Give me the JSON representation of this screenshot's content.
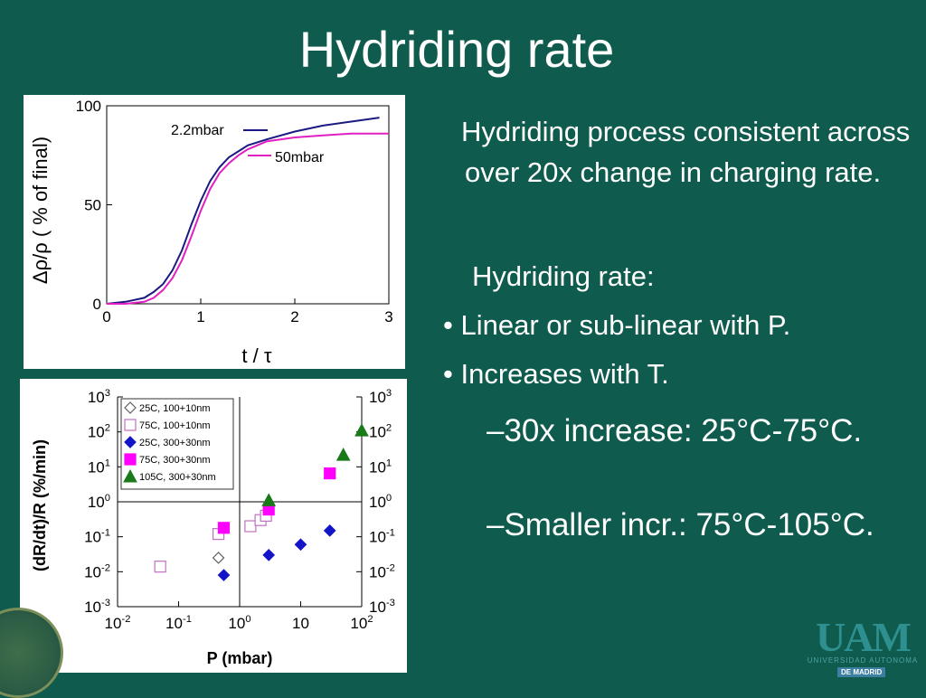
{
  "slide": {
    "title": "Hydriding rate",
    "intro": "Hydriding process consistent across over 20x change in charging rate.",
    "heading": "Hydriding rate:",
    "bullets": [
      "Linear or sub-linear with P.",
      "Increases with T."
    ],
    "sub_bullets": [
      "–30x increase: 25°C-75°C.",
      "–Smaller incr.: 75°C-105°C."
    ],
    "bullet_symbol": "•"
  },
  "logo": {
    "letters": "UAM",
    "line1": "UNIVERSIDAD AUTONOMA",
    "line2": "DE MADRID"
  },
  "colors": {
    "background": "#0f5b4e",
    "series_2_2mbar": "#1a1a80",
    "series_50mbar": "#e020c0",
    "magenta": "#ff00ff",
    "blue": "#1414c8",
    "green": "#1a7a1a",
    "open_violet": "#c070c0"
  },
  "chart_data": [
    {
      "type": "line",
      "xlabel": "t / τ",
      "ylabel": "Δρ/ρ ( % of final)",
      "xlim": [
        0,
        3
      ],
      "ylim": [
        0,
        100
      ],
      "xticks": [
        "0",
        "1",
        "2",
        "3"
      ],
      "yticks": [
        "0",
        "50",
        "100"
      ],
      "series": [
        {
          "name": "2.2mbar",
          "color": "#1a1a80",
          "x": [
            0,
            0.2,
            0.4,
            0.5,
            0.6,
            0.7,
            0.8,
            0.9,
            1.0,
            1.1,
            1.2,
            1.3,
            1.4,
            1.5,
            1.7,
            2.0,
            2.3,
            2.6,
            2.9
          ],
          "y": [
            0,
            1,
            3,
            6,
            10,
            17,
            27,
            40,
            52,
            62,
            69,
            74,
            77,
            80,
            83,
            87,
            90,
            92,
            94
          ]
        },
        {
          "name": "50mbar",
          "color": "#e020c0",
          "x": [
            0,
            0.2,
            0.4,
            0.5,
            0.6,
            0.7,
            0.8,
            0.9,
            1.0,
            1.1,
            1.2,
            1.3,
            1.4,
            1.5,
            1.7,
            2.0,
            2.3,
            2.6,
            3.0
          ],
          "y": [
            0,
            0,
            1,
            3,
            7,
            13,
            22,
            34,
            47,
            58,
            66,
            71,
            75,
            78,
            82,
            84,
            85,
            86,
            86
          ]
        }
      ]
    },
    {
      "type": "scatter",
      "xlabel": "P (mbar)",
      "ylabel": "(dR/dt)/R (%/min)",
      "xscale": "log",
      "yscale": "log",
      "xlim": [
        0.01,
        100
      ],
      "ylim": [
        0.001,
        1000
      ],
      "xticks": [
        "10-2",
        "10-1",
        "100",
        "10",
        "102"
      ],
      "yticks": [
        "10-3",
        "10-2",
        "10-1",
        "100",
        "101",
        "102",
        "103"
      ],
      "legend_position": "top-left",
      "series": [
        {
          "name": "25C,  100+10nm",
          "marker": "open-diamond",
          "color": "#606060",
          "x": [
            0.45
          ],
          "y": [
            0.025
          ]
        },
        {
          "name": "75C,  100+10nm",
          "marker": "open-square",
          "color": "#c070c0",
          "x": [
            0.05,
            0.45,
            1.5,
            2.2,
            2.7
          ],
          "y": [
            0.014,
            0.12,
            0.2,
            0.3,
            0.4
          ]
        },
        {
          "name": "25C,  300+30nm",
          "marker": "filled-diamond",
          "color": "#1414c8",
          "x": [
            0.55,
            3.0,
            10,
            30
          ],
          "y": [
            0.008,
            0.03,
            0.06,
            0.15
          ]
        },
        {
          "name": "75C,  300+30nm",
          "marker": "filled-square",
          "color": "#ff00ff",
          "x": [
            0.55,
            3.0,
            30
          ],
          "y": [
            0.18,
            0.6,
            6.5
          ]
        },
        {
          "name": "105C, 300+30nm",
          "marker": "filled-triangle",
          "color": "#1a7a1a",
          "x": [
            3.0,
            50,
            100
          ],
          "y": [
            1.1,
            22,
            110
          ]
        }
      ]
    }
  ]
}
